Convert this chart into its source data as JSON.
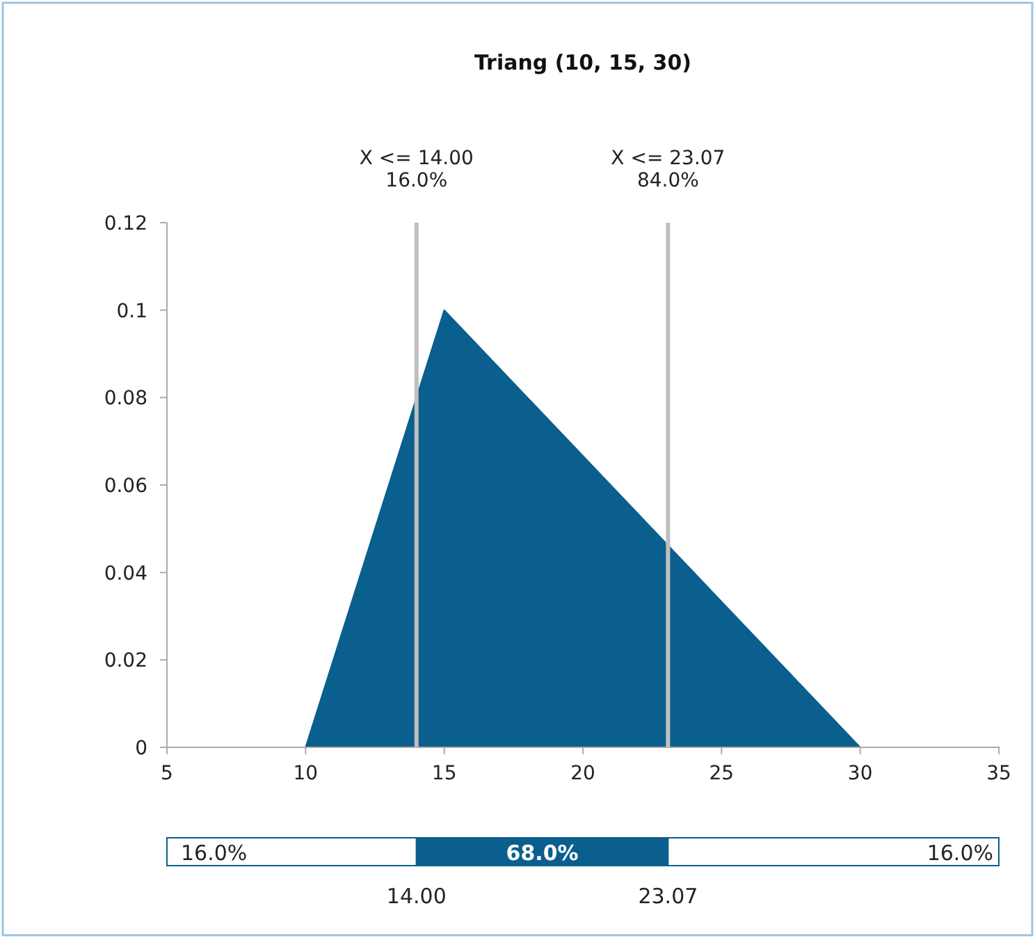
{
  "chart_data": [
    {
      "type": "area",
      "title": "Triang (10, 15, 30)",
      "x": [
        5,
        10,
        15,
        30,
        35
      ],
      "series": [
        {
          "color": "#0b5f8e",
          "values": [
            0,
            0,
            0.1,
            0,
            0
          ]
        }
      ],
      "xlim": [
        5,
        35
      ],
      "xticks": [
        5,
        10,
        15,
        20,
        25,
        30,
        35
      ],
      "ylim": [
        0,
        0.12
      ],
      "yticks": [
        0,
        0.02,
        0.04,
        0.06,
        0.08,
        0.1,
        0.12
      ],
      "grid": false,
      "ref_lines": [
        {
          "axis": "x",
          "value": 14,
          "label": "X <= 14.00\n16.0%",
          "color": "#bfbfbf"
        },
        {
          "axis": "x",
          "value": 23.07,
          "label": "X <= 23.07\n84.0%",
          "color": "#bfbfbf"
        }
      ]
    },
    {
      "type": "other",
      "annotations": [
        "16.0%",
        "68.0%",
        "16.0%",
        "14.00",
        "23.07"
      ]
    }
  ]
}
